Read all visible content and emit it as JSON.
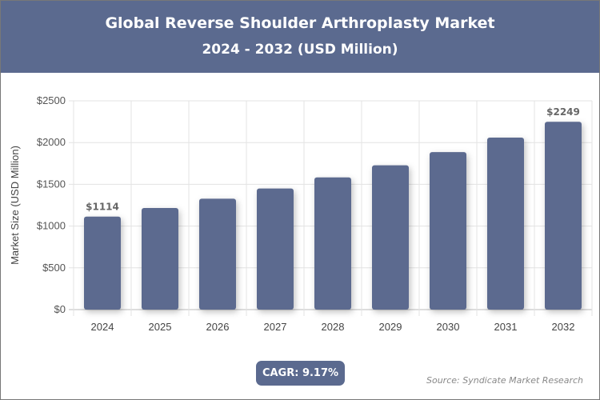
{
  "header": {
    "title": "Global Reverse Shoulder Arthroplasty Market",
    "subtitle": "2024 - 2032 (USD Million)"
  },
  "cagr_label": "CAGR: 9.17%",
  "source": "Source: Syndicate Market Research",
  "chart_data": {
    "type": "bar",
    "title": "Global Reverse Shoulder Arthroplasty Market",
    "subtitle": "2024 - 2032 (USD Million)",
    "ylabel": "Market Size (USD Million)",
    "xlabel": "",
    "categories": [
      "2024",
      "2025",
      "2026",
      "2027",
      "2028",
      "2029",
      "2030",
      "2031",
      "2032"
    ],
    "values": [
      1114,
      1216,
      1328,
      1450,
      1583,
      1728,
      1886,
      2059,
      2249
    ],
    "data_labels": {
      "0": "$1114",
      "8": "$2249"
    },
    "ylim": [
      0,
      2500
    ],
    "yticks": [
      0,
      500,
      1000,
      1500,
      2000,
      2500
    ],
    "ytick_labels": [
      "$0",
      "$500",
      "$1000",
      "$1500",
      "$2000",
      "$2500"
    ],
    "grid": true,
    "bar_color": "#5b6a8f"
  }
}
